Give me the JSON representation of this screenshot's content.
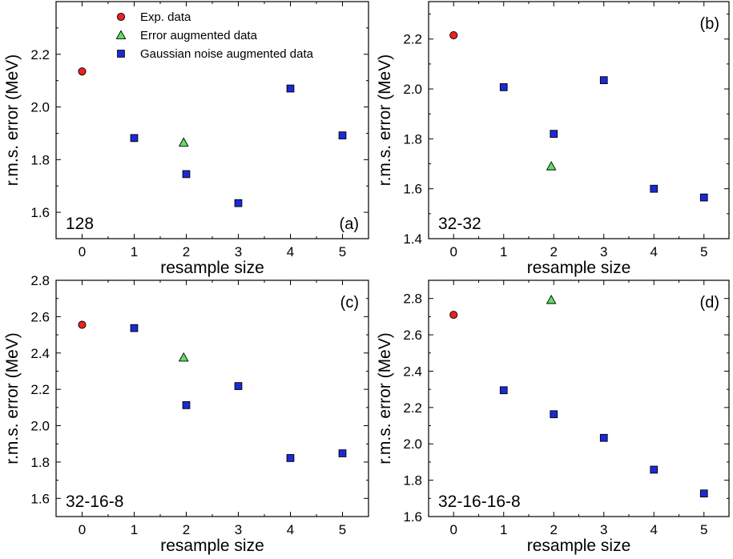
{
  "colors": {
    "exp": "#e8231f",
    "error": "#5ee05e",
    "gaussian": "#1a2bd6"
  },
  "legend": [
    {
      "series": "exp",
      "label": "Exp. data"
    },
    {
      "series": "error",
      "label": "Error augmented data"
    },
    {
      "series": "gaussian",
      "label": "Gaussian noise augmented data"
    }
  ],
  "chart_data": [
    {
      "type": "scatter",
      "tag": "(a)",
      "arch": "128",
      "xlabel": "resample size",
      "ylabel": "r.m.s. error (MeV)",
      "xlim": [
        -0.5,
        5.5
      ],
      "ylim": [
        1.5,
        2.4
      ],
      "xticks": [
        0,
        1,
        2,
        3,
        4,
        5
      ],
      "yticks": [
        1.6,
        1.8,
        2.0,
        2.2
      ],
      "series": [
        {
          "name": "Exp. data",
          "key": "exp",
          "marker": "circle",
          "points": [
            [
              0,
              2.135
            ]
          ]
        },
        {
          "name": "Error augmented data",
          "key": "error",
          "marker": "triangle",
          "points": [
            [
              1.95,
              1.865
            ]
          ]
        },
        {
          "name": "Gaussian noise augmented data",
          "key": "gaussian",
          "marker": "square",
          "points": [
            [
              1,
              1.882
            ],
            [
              2,
              1.745
            ],
            [
              3,
              1.635
            ],
            [
              4,
              2.07
            ],
            [
              5,
              1.892
            ]
          ]
        }
      ]
    },
    {
      "type": "scatter",
      "tag": "(b)",
      "arch": "32-32",
      "xlabel": "resample size",
      "ylabel": "r.m.s. error (MeV)",
      "xlim": [
        -0.5,
        5.5
      ],
      "ylim": [
        1.4,
        2.35
      ],
      "xticks": [
        0,
        1,
        2,
        3,
        4,
        5
      ],
      "yticks": [
        1.4,
        1.6,
        1.8,
        2.0,
        2.2
      ],
      "series": [
        {
          "name": "Exp. data",
          "key": "exp",
          "marker": "circle",
          "points": [
            [
              0,
              2.215
            ]
          ]
        },
        {
          "name": "Error augmented data",
          "key": "error",
          "marker": "triangle",
          "points": [
            [
              1.95,
              1.69
            ]
          ]
        },
        {
          "name": "Gaussian noise augmented data",
          "key": "gaussian",
          "marker": "square",
          "points": [
            [
              1,
              2.007
            ],
            [
              2,
              1.82
            ],
            [
              3,
              2.035
            ],
            [
              4,
              1.6
            ],
            [
              5,
              1.565
            ]
          ]
        }
      ]
    },
    {
      "type": "scatter",
      "tag": "(c)",
      "arch": "32-16-8",
      "xlabel": "resample size",
      "ylabel": "r.m.s. error (MeV)",
      "xlim": [
        -0.5,
        5.5
      ],
      "ylim": [
        1.5,
        2.8
      ],
      "xticks": [
        0,
        1,
        2,
        3,
        4,
        5
      ],
      "yticks": [
        1.6,
        1.8,
        2.0,
        2.2,
        2.4,
        2.6,
        2.8
      ],
      "series": [
        {
          "name": "Exp. data",
          "key": "exp",
          "marker": "circle",
          "points": [
            [
              0,
              2.555
            ]
          ]
        },
        {
          "name": "Error augmented data",
          "key": "error",
          "marker": "triangle",
          "points": [
            [
              1.95,
              2.375
            ]
          ]
        },
        {
          "name": "Gaussian noise augmented data",
          "key": "gaussian",
          "marker": "square",
          "points": [
            [
              1,
              2.537
            ],
            [
              2,
              2.113
            ],
            [
              3,
              2.218
            ],
            [
              4,
              1.822
            ],
            [
              5,
              1.848
            ]
          ]
        }
      ]
    },
    {
      "type": "scatter",
      "tag": "(d)",
      "arch": "32-16-16-8",
      "xlabel": "resample size",
      "ylabel": "r.m.s. error (MeV)",
      "xlim": [
        -0.5,
        5.5
      ],
      "ylim": [
        1.6,
        2.9
      ],
      "xticks": [
        0,
        1,
        2,
        3,
        4,
        5
      ],
      "yticks": [
        1.6,
        1.8,
        2.0,
        2.2,
        2.4,
        2.6,
        2.8
      ],
      "series": [
        {
          "name": "Exp. data",
          "key": "exp",
          "marker": "circle",
          "points": [
            [
              0,
              2.71
            ]
          ]
        },
        {
          "name": "Error augmented data",
          "key": "error",
          "marker": "triangle",
          "points": [
            [
              1.95,
              2.792
            ]
          ]
        },
        {
          "name": "Gaussian noise augmented data",
          "key": "gaussian",
          "marker": "square",
          "points": [
            [
              1,
              2.295
            ],
            [
              2,
              2.163
            ],
            [
              3,
              2.033
            ],
            [
              4,
              1.858
            ],
            [
              5,
              1.727
            ]
          ]
        }
      ]
    }
  ]
}
